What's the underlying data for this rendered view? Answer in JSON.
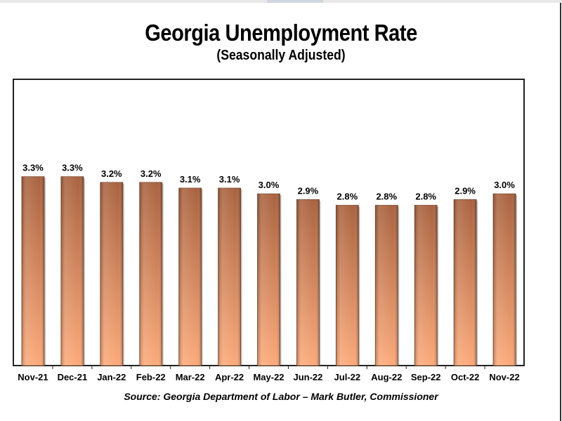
{
  "chart_data": {
    "type": "bar",
    "title": "Georgia Unemployment Rate",
    "subtitle": "(Seasonally Adjusted)",
    "categories": [
      "Nov-21",
      "Dec-21",
      "Jan-22",
      "Feb-22",
      "Mar-22",
      "Apr-22",
      "May-22",
      "Jun-22",
      "Jul-22",
      "Aug-22",
      "Sep-22",
      "Oct-22",
      "Nov-22"
    ],
    "values": [
      3.3,
      3.3,
      3.2,
      3.2,
      3.1,
      3.1,
      3.0,
      2.9,
      2.8,
      2.8,
      2.8,
      2.9,
      3.0
    ],
    "data_labels": [
      "3.3%",
      "3.3%",
      "3.2%",
      "3.2%",
      "3.1%",
      "3.1%",
      "3.0%",
      "2.9%",
      "2.8%",
      "2.8%",
      "2.8%",
      "2.9%",
      "3.0%"
    ],
    "xlabel": "",
    "ylabel": "",
    "ylim": [
      0,
      5
    ],
    "grid": false,
    "source": "Source:  Georgia Department of Labor – Mark Butler, Commissioner",
    "colors": {
      "bar_top": "#a9623f",
      "bar_bottom": "#fcaa7a",
      "bar_edge": "#7a4a30"
    }
  }
}
